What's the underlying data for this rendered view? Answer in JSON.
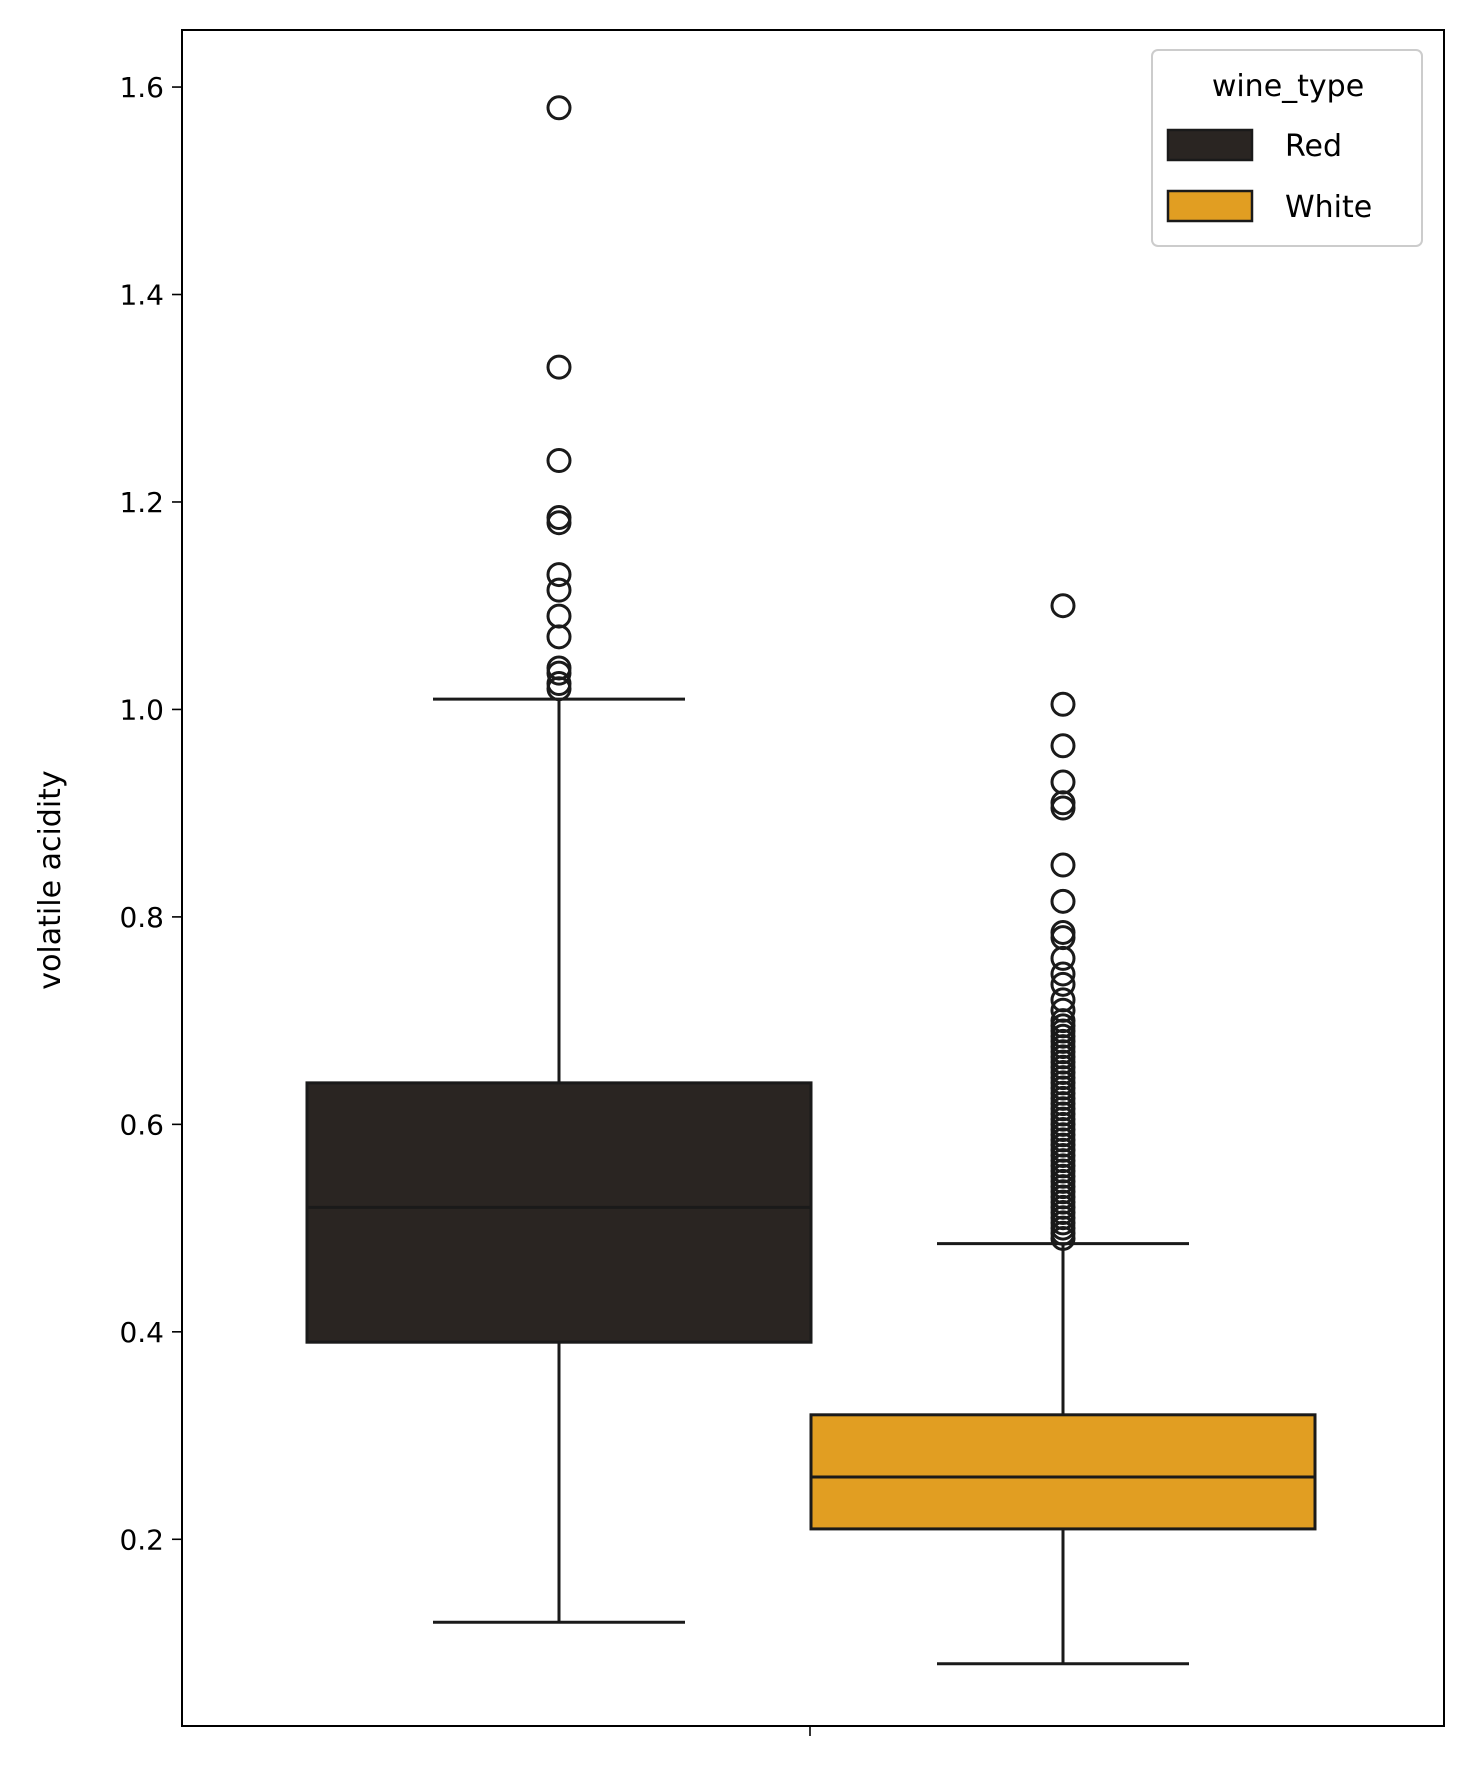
{
  "chart_data": {
    "type": "box",
    "title": "",
    "xlabel": "",
    "ylabel": "volatile acidity",
    "ylim": [
      0.02,
      1.655
    ],
    "yticks": [
      0.2,
      0.4,
      0.6,
      0.8,
      1.0,
      1.2,
      1.4,
      1.6
    ],
    "ytick_labels": [
      "0.2",
      "0.4",
      "0.6",
      "0.8",
      "1.0",
      "1.2",
      "1.4",
      "1.6"
    ],
    "grid": false,
    "legend": {
      "title": "wine_type",
      "placement": "top-right"
    },
    "series": [
      {
        "name": "Red",
        "color": "#2a2522",
        "whisker_low": 0.12,
        "q1": 0.39,
        "median": 0.52,
        "q3": 0.64,
        "whisker_high": 1.01,
        "outliers": [
          1.58,
          1.33,
          1.24,
          1.185,
          1.18,
          1.13,
          1.115,
          1.09,
          1.07,
          1.04,
          1.035,
          1.025,
          1.02
        ]
      },
      {
        "name": "White",
        "color": "#e19e22",
        "whisker_low": 0.08,
        "q1": 0.21,
        "median": 0.26,
        "q3": 0.32,
        "whisker_high": 0.485,
        "outliers": [
          1.1,
          1.005,
          0.965,
          0.93,
          0.91,
          0.905,
          0.85,
          0.815,
          0.785,
          0.78,
          0.76,
          0.745,
          0.735,
          0.72,
          0.71,
          0.7,
          0.695,
          0.69,
          0.685,
          0.68,
          0.675,
          0.67,
          0.665,
          0.66,
          0.655,
          0.65,
          0.645,
          0.64,
          0.635,
          0.63,
          0.625,
          0.62,
          0.615,
          0.61,
          0.605,
          0.6,
          0.595,
          0.59,
          0.585,
          0.58,
          0.575,
          0.57,
          0.565,
          0.56,
          0.555,
          0.55,
          0.545,
          0.54,
          0.535,
          0.53,
          0.525,
          0.52,
          0.515,
          0.51,
          0.505,
          0.5,
          0.495,
          0.49
        ]
      }
    ]
  }
}
